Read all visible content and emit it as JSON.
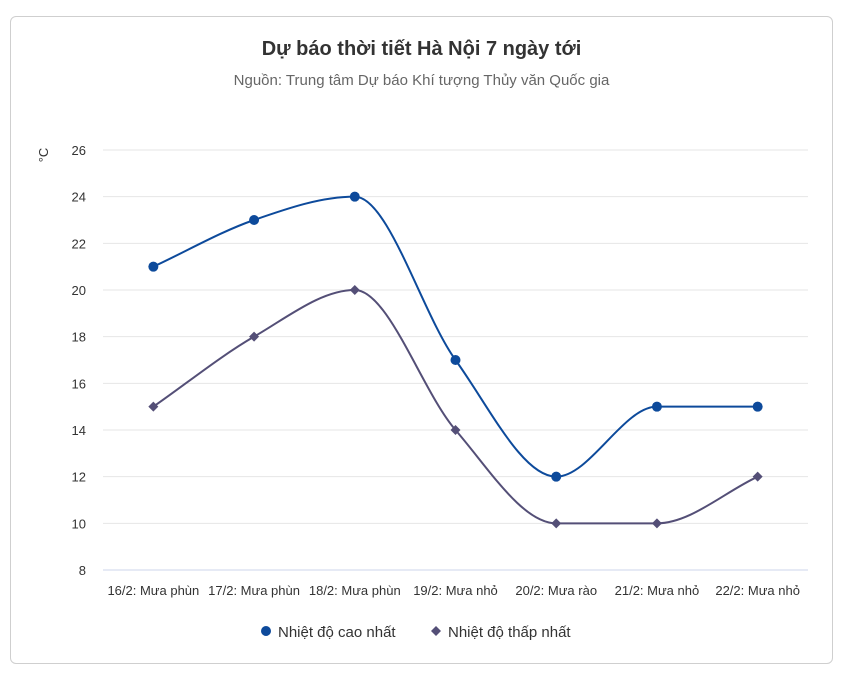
{
  "chart_data": {
    "type": "line",
    "title": "Dự báo thời tiết Hà Nội 7 ngày tới",
    "subtitle": "Nguồn: Trung tâm Dự báo Khí tượng Thủy văn Quốc gia",
    "ylabel": "°C",
    "xlabel": "",
    "categories": [
      "16/2: Mưa phùn",
      "17/2: Mưa phùn",
      "18/2: Mưa phùn",
      "19/2: Mưa nhỏ",
      "20/2: Mưa rào",
      "21/2: Mưa nhỏ",
      "22/2: Mưa nhỏ"
    ],
    "ylim": [
      8,
      26
    ],
    "yticks": [
      8,
      10,
      12,
      14,
      16,
      18,
      20,
      22,
      24,
      26
    ],
    "grid": true,
    "legend": "bottom-center",
    "series": [
      {
        "name": "Nhiệt độ cao nhất",
        "values": [
          21,
          23,
          24,
          17,
          12,
          15,
          15
        ],
        "color": "#0d4a9b",
        "marker": "circle"
      },
      {
        "name": "Nhiệt độ thấp nhất",
        "values": [
          15,
          18,
          20,
          14,
          10,
          10,
          12
        ],
        "color": "#544f77",
        "marker": "diamond"
      }
    ]
  }
}
